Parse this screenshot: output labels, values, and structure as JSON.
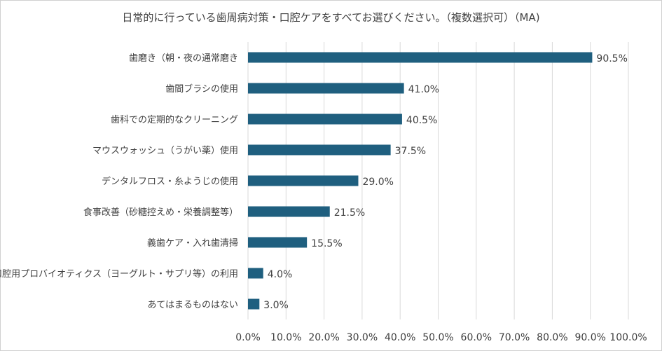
{
  "chart_data": {
    "type": "bar",
    "orientation": "horizontal",
    "title": "日常的に行っている歯周病対策・口腔ケアをすべてお選びください。（複数選択可）（MA)",
    "categories": [
      "歯磨き（朝・夜の通常磨き",
      "歯間ブラシの使用",
      "歯科での定期的なクリーニング",
      "マウスウォッシュ（うがい薬）使用",
      "デンタルフロス・糸ようじの使用",
      "食事改善（砂糖控えめ・栄養調整等）",
      "義歯ケア・入れ歯清掃",
      "口腔用プロバイオティクス（ヨーグルト・サプリ等）の利用",
      "あてはまるものはない"
    ],
    "values": [
      90.5,
      41.0,
      40.5,
      37.5,
      29.0,
      21.5,
      15.5,
      4.0,
      3.0
    ],
    "value_labels": [
      "90.5%",
      "41.0%",
      "40.5%",
      "37.5%",
      "29.0%",
      "21.5%",
      "15.5%",
      "4.0%",
      "3.0%"
    ],
    "xlim": [
      0,
      100
    ],
    "xticks": [
      0,
      10,
      20,
      30,
      40,
      50,
      60,
      70,
      80,
      90,
      100
    ],
    "xtick_labels": [
      "0.0%",
      "10.0%",
      "20.0%",
      "30.0%",
      "40.0%",
      "50.0%",
      "60.0%",
      "70.0%",
      "80.0%",
      "90.0%",
      "100.0%"
    ],
    "grid": true,
    "bar_color": "#1f5f7f"
  }
}
